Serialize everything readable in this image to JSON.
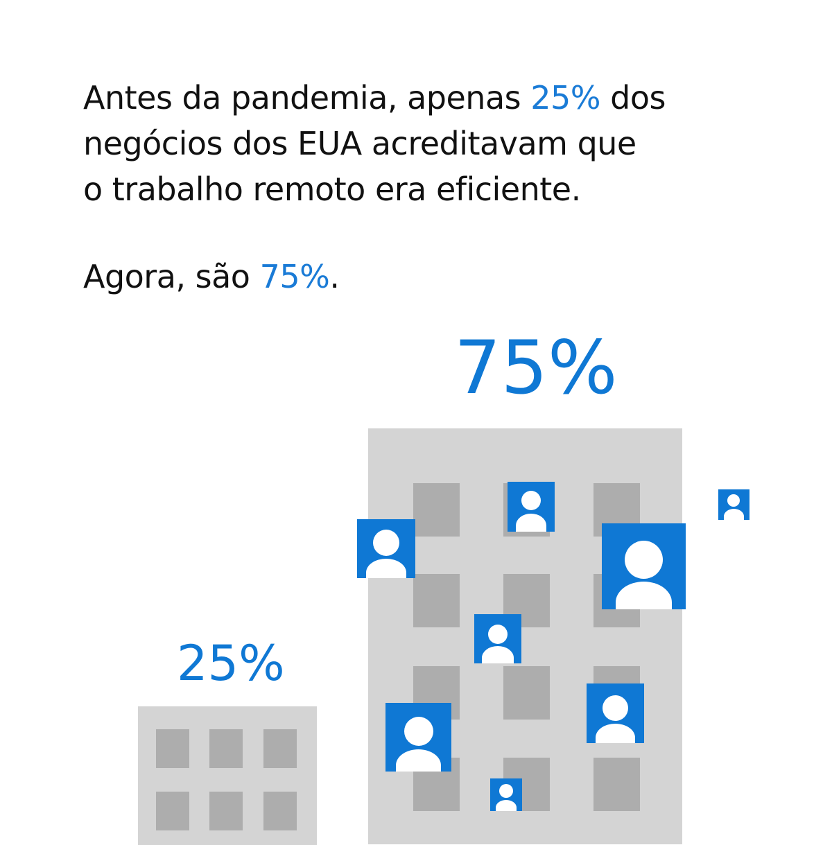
{
  "headline": {
    "line1_before": "Antes da pandemia, apenas ",
    "line1_accent": "25%",
    "line1_after": " dos",
    "line2": "negócios dos EUA acreditavam que",
    "line3": "o trabalho remoto era eficiente."
  },
  "sub": {
    "before": "Agora, são ",
    "accent": "75%",
    "after": "."
  },
  "labels": {
    "after": "75%",
    "before": "25%"
  },
  "icons": {
    "building": "building-icon",
    "person": "person-icon"
  },
  "colors": {
    "accent": "#1a7bd6",
    "person_tile": "#0f78d4",
    "building": "#d4d4d4",
    "window": "#adadad",
    "text": "#111111"
  }
}
